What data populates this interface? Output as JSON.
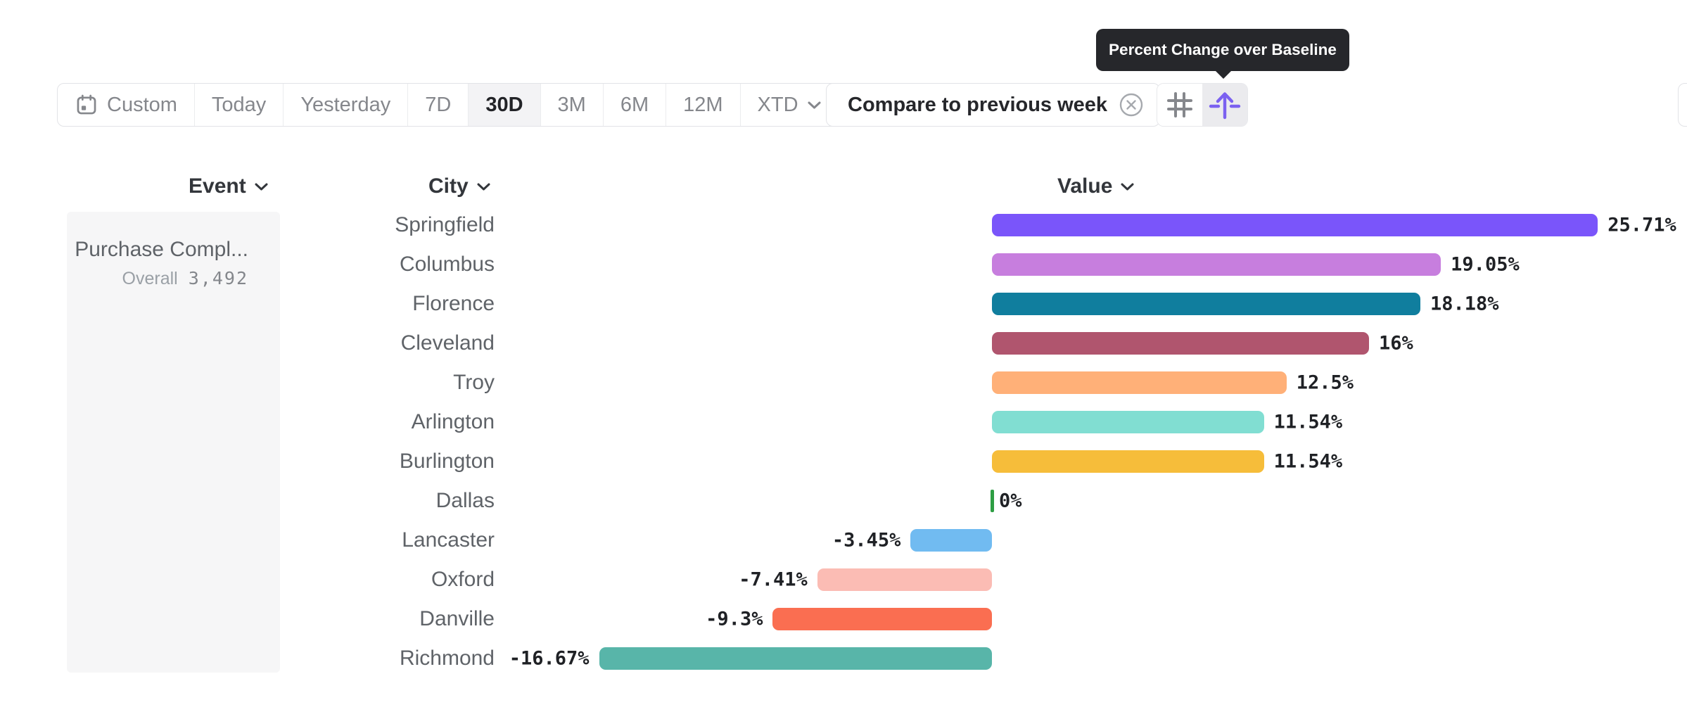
{
  "tooltip": {
    "text": "Percent Change over Baseline"
  },
  "toolbar": {
    "date_ranges": [
      {
        "label": "Custom",
        "icon": "calendar-icon",
        "selected": false
      },
      {
        "label": "Today",
        "selected": false
      },
      {
        "label": "Yesterday",
        "selected": false
      },
      {
        "label": "7D",
        "selected": false
      },
      {
        "label": "30D",
        "selected": true
      },
      {
        "label": "3M",
        "selected": false
      },
      {
        "label": "6M",
        "selected": false
      },
      {
        "label": "12M",
        "selected": false
      },
      {
        "label": "XTD",
        "selected": false,
        "has_dropdown": true
      }
    ],
    "compare_chip": {
      "label": "Compare to previous week",
      "icon": "close-circle-icon"
    },
    "view_toggle": [
      {
        "name": "grid-view",
        "icon": "hash-icon",
        "selected": false
      },
      {
        "name": "percent-change-view",
        "icon": "baseline-arrow-up-icon",
        "selected": true
      }
    ]
  },
  "table": {
    "columns": [
      {
        "label": "Event"
      },
      {
        "label": "City"
      },
      {
        "label": "Value"
      }
    ]
  },
  "event_panel": {
    "event_name": "Purchase Compl...",
    "overall_label": "Overall",
    "overall_value": "3,492"
  },
  "chart_data": {
    "type": "bar",
    "orientation": "horizontal",
    "metric": "Percent Change over Baseline",
    "comparison": "Compare to previous week",
    "period": "30D",
    "value_unit": "%",
    "xlim": [
      -16.67,
      25.71
    ],
    "categories": [
      "Springfield",
      "Columbus",
      "Florence",
      "Cleveland",
      "Troy",
      "Arlington",
      "Burlington",
      "Dallas",
      "Lancaster",
      "Oxford",
      "Danville",
      "Richmond"
    ],
    "values": [
      25.71,
      19.05,
      18.18,
      16,
      12.5,
      11.54,
      11.54,
      0,
      -3.45,
      -7.41,
      -9.3,
      -16.67
    ],
    "value_labels": [
      "25.71%",
      "19.05%",
      "18.18%",
      "16%",
      "12.5%",
      "11.54%",
      "11.54%",
      "0%",
      "-3.45%",
      "-7.41%",
      "-9.3%",
      "-16.67%"
    ],
    "bar_colors": [
      "#7A55FA",
      "#C77EDE",
      "#107E9E",
      "#B0556E",
      "#FFB078",
      "#81DED2",
      "#F6BD3A",
      "#2E9E44",
      "#71BBF1",
      "#FBBCB4",
      "#FA6E51",
      "#58B5A9"
    ]
  },
  "colors": {
    "accent_purple": "#7B61F0",
    "tooltip_bg": "#26272B",
    "zero_tick_green": "#2E9E44",
    "panel_bg": "#f6f6f7"
  }
}
